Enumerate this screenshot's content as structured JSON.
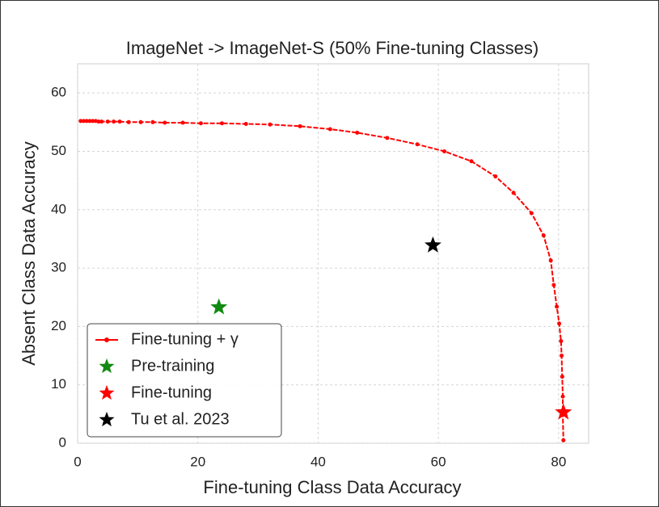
{
  "chart_data": {
    "type": "line",
    "title": "ImageNet -> ImageNet-S (50% Fine-tuning Classes)",
    "xlabel": "Fine-tuning Class Data Accuracy",
    "ylabel": "Absent Class Data Accuracy",
    "xlim": [
      0,
      85
    ],
    "ylim": [
      0,
      65
    ],
    "xticks": [
      0,
      20,
      40,
      60,
      80
    ],
    "yticks": [
      0,
      10,
      20,
      30,
      40,
      50,
      60
    ],
    "grid": true,
    "legend": "lower left",
    "series": [
      {
        "name": "Fine-tuning + γ",
        "color": "#ff0000",
        "marker": "dot",
        "x": [
          0.5,
          1,
          1.5,
          2,
          2.5,
          3,
          3.5,
          4,
          5,
          6,
          7,
          8.5,
          10.5,
          12.5,
          14.5,
          17.5,
          20.5,
          24,
          28,
          32,
          37,
          42,
          46.5,
          51.5,
          56.5,
          61,
          65.5,
          69.5,
          72.5,
          75.5,
          77.5,
          78.7,
          79.2,
          79.7,
          80.1,
          80.4,
          80.5,
          80.6,
          80.7,
          80.7,
          80.8
        ],
        "values": [
          55.2,
          55.2,
          55.2,
          55.2,
          55.2,
          55.2,
          55.1,
          55.1,
          55.1,
          55.1,
          55.1,
          55.0,
          55.0,
          55.0,
          54.9,
          54.9,
          54.8,
          54.8,
          54.7,
          54.6,
          54.3,
          53.8,
          53.2,
          52.3,
          51.2,
          50.0,
          48.3,
          45.7,
          42.9,
          39.4,
          35.6,
          31.3,
          27.1,
          23.4,
          20.5,
          17.5,
          15.0,
          11.4,
          8.0,
          5.0,
          0.5
        ]
      },
      {
        "name": "Pre-training",
        "color": "#138a13",
        "marker": "star",
        "x": [
          23.5
        ],
        "values": [
          23.3
        ]
      },
      {
        "name": "Fine-tuning",
        "color": "#ff0000",
        "marker": "star",
        "x": [
          80.8
        ],
        "values": [
          5.3
        ]
      },
      {
        "name": "Tu et al. 2023",
        "color": "#000000",
        "marker": "star",
        "x": [
          59.1
        ],
        "values": [
          33.9
        ]
      }
    ]
  }
}
